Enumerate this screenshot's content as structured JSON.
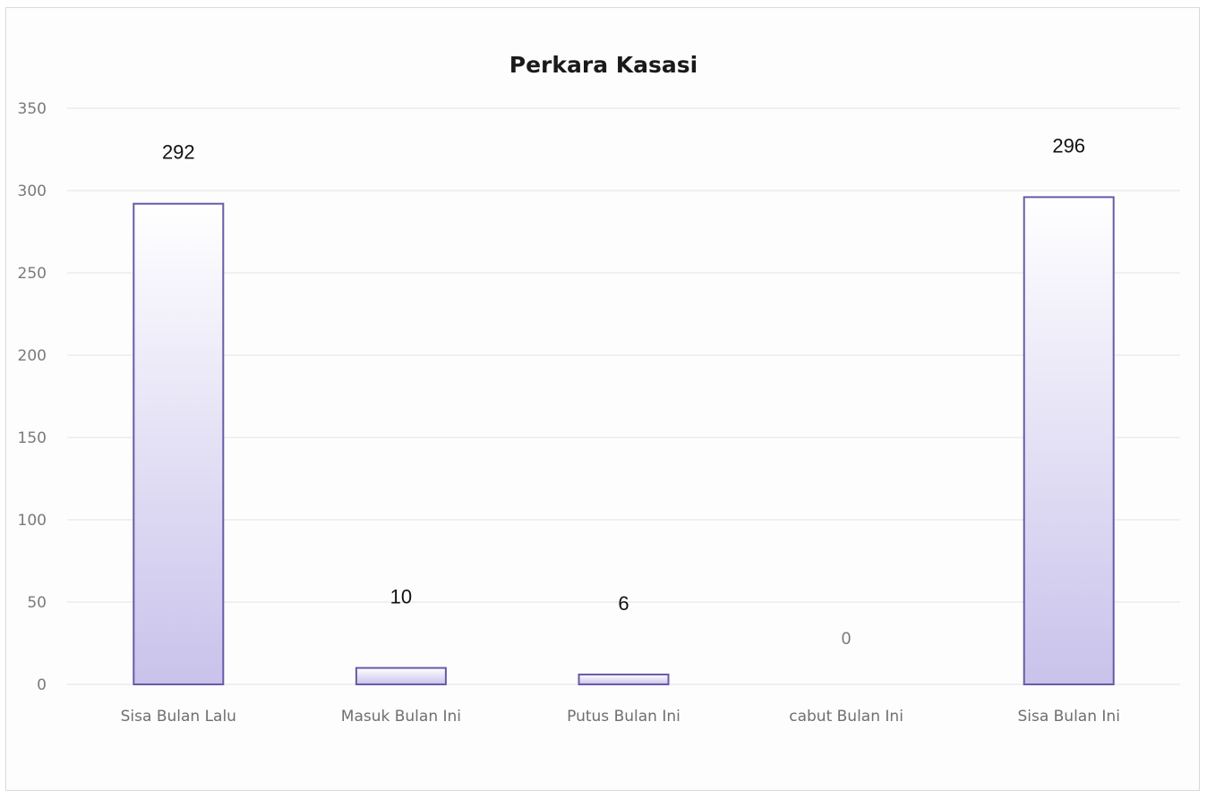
{
  "chart_data": {
    "type": "bar",
    "title": "Perkara Kasasi",
    "xlabel": "",
    "ylabel": "",
    "categories": [
      "Sisa Bulan Lalu",
      "Masuk Bulan Ini",
      "Putus Bulan Ini",
      "cabut Bulan Ini",
      "Sisa Bulan Ini"
    ],
    "values": [
      292,
      10,
      6,
      0,
      296
    ],
    "data_labels": [
      "292",
      "10",
      "6",
      "0",
      "296"
    ],
    "ylim": [
      0,
      350
    ],
    "yticks": [
      "0",
      "50",
      "100",
      "150",
      "200",
      "250",
      "300",
      "350"
    ],
    "grid": true,
    "legend": "none",
    "colors": {
      "bar_fill_top": "#ffffff",
      "bar_fill_bottom": "#c9c2eb",
      "bar_stroke": "#6a5aa8",
      "gridline": "#e3e3e3"
    }
  }
}
